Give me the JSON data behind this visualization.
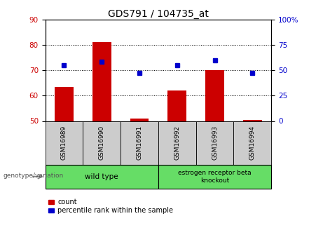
{
  "title": "GDS791 / 104735_at",
  "samples": [
    "GSM16989",
    "GSM16990",
    "GSM16991",
    "GSM16992",
    "GSM16993",
    "GSM16994"
  ],
  "count_values": [
    63.5,
    81.0,
    51.0,
    62.0,
    70.0,
    50.5
  ],
  "percentile_values": [
    55,
    58,
    47,
    55,
    60,
    47
  ],
  "ylim_left": [
    50,
    90
  ],
  "ylim_right": [
    0,
    100
  ],
  "yticks_left": [
    50,
    60,
    70,
    80,
    90
  ],
  "yticks_right": [
    0,
    25,
    50,
    75,
    100
  ],
  "ytick_labels_right": [
    "0",
    "25",
    "50",
    "75",
    "100%"
  ],
  "bar_color": "#cc0000",
  "dot_color": "#0000cc",
  "bar_width": 0.5,
  "group_wt_label": "wild type",
  "group_er_label": "estrogen receptor beta\nknockout",
  "group_color": "#66dd66",
  "xtick_bg": "#cccccc",
  "legend_count_label": "count",
  "legend_pct_label": "percentile rank within the sample",
  "genotype_label": "genotype/variation",
  "title_fontsize": 10,
  "tick_fontsize": 7.5,
  "label_fontsize": 7.5
}
